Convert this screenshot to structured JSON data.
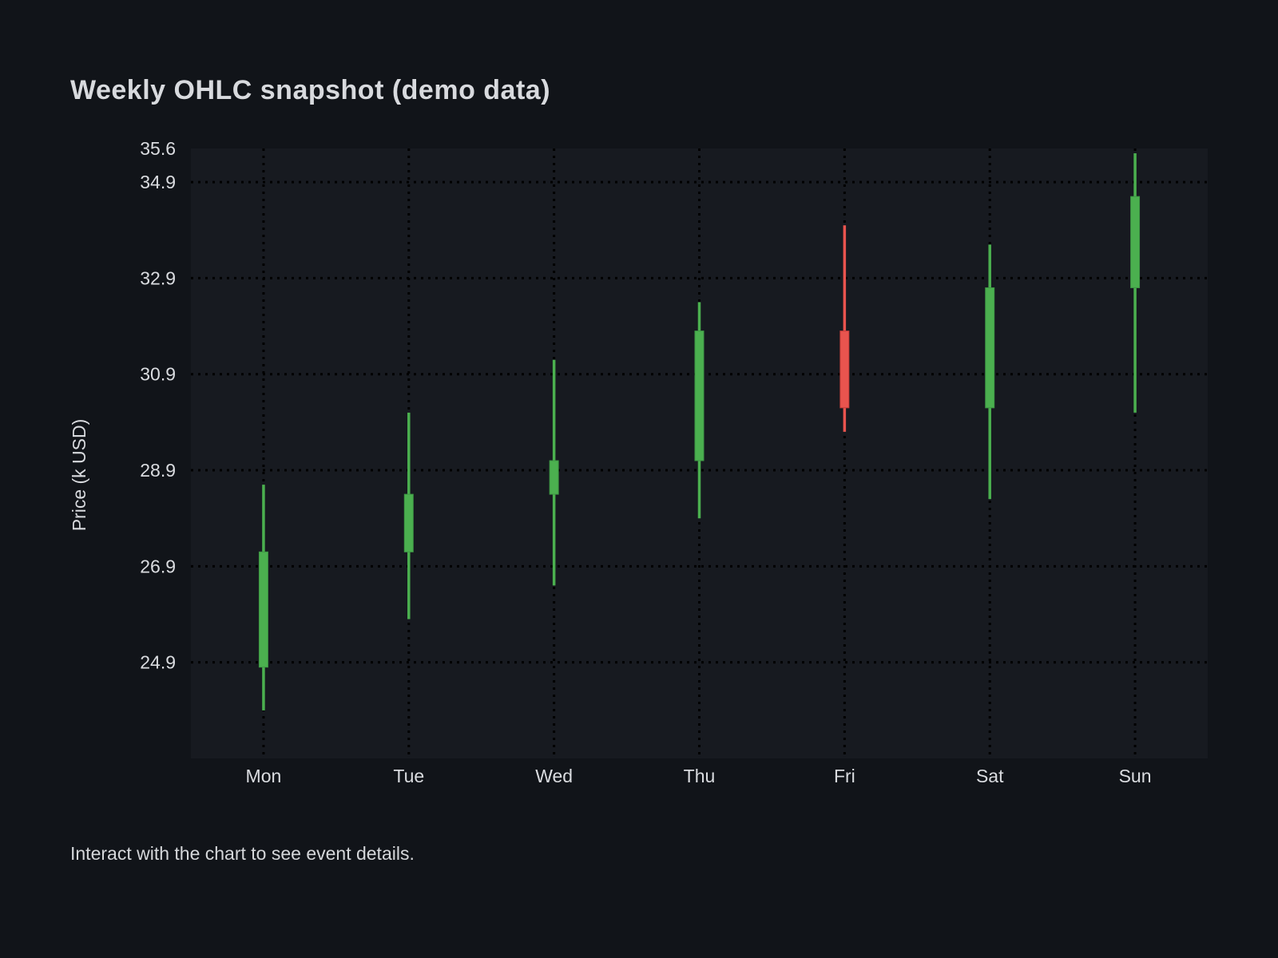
{
  "page": {
    "title": "Weekly OHLC snapshot (demo data)",
    "footer_note": "Interact with the chart to see event details."
  },
  "colors": {
    "page_bg": "#111419",
    "plot_bg": "#171a20",
    "grid": "#000000",
    "up": "#4bb04f",
    "up_border": "#3d9644",
    "down": "#e9544e",
    "down_border": "#c43c38",
    "text": "#d8dade",
    "tick_text": "#dadce0"
  },
  "chart_data": {
    "type": "candlestick",
    "title": "Weekly OHLC snapshot (demo data)",
    "xlabel": "",
    "ylabel": "Price (k USD)",
    "categories": [
      "Mon",
      "Tue",
      "Wed",
      "Thu",
      "Fri",
      "Sat",
      "Sun"
    ],
    "yticks": [
      35.6,
      34.9,
      32.9,
      30.9,
      28.9,
      26.9,
      24.9
    ],
    "ylim": [
      22.9,
      35.6
    ],
    "grid": "dotted",
    "legend": "none",
    "series": [
      {
        "name": "Weekly OHLC",
        "points": [
          {
            "category": "Mon",
            "open": 24.8,
            "high": 28.6,
            "low": 23.9,
            "close": 27.2,
            "direction": "up"
          },
          {
            "category": "Tue",
            "open": 27.2,
            "high": 30.1,
            "low": 25.8,
            "close": 28.4,
            "direction": "up"
          },
          {
            "category": "Wed",
            "open": 28.4,
            "high": 31.2,
            "low": 26.5,
            "close": 29.1,
            "direction": "up"
          },
          {
            "category": "Thu",
            "open": 29.1,
            "high": 32.4,
            "low": 27.9,
            "close": 31.8,
            "direction": "up"
          },
          {
            "category": "Fri",
            "open": 31.8,
            "high": 34.0,
            "low": 29.7,
            "close": 30.2,
            "direction": "down"
          },
          {
            "category": "Sat",
            "open": 30.2,
            "high": 33.6,
            "low": 28.3,
            "close": 32.7,
            "direction": "up"
          },
          {
            "category": "Sun",
            "open": 32.7,
            "high": 35.5,
            "low": 30.1,
            "close": 34.6,
            "direction": "up"
          }
        ]
      }
    ]
  },
  "layout_labels": {
    "y_axis_name": "Price (k USD)"
  }
}
